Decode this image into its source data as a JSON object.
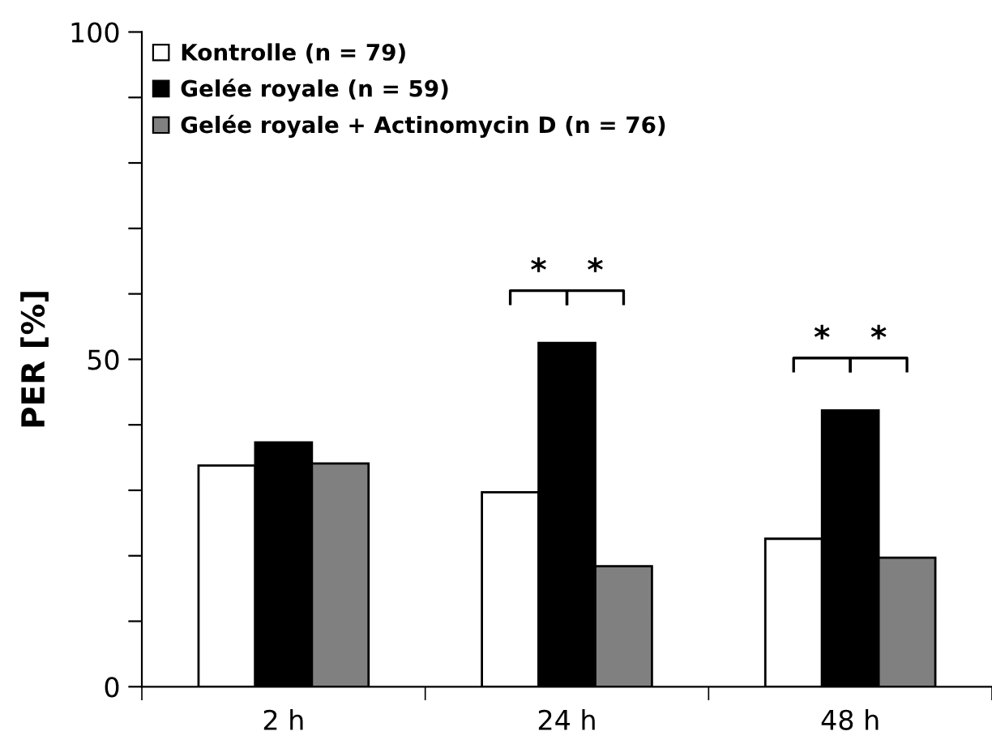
{
  "chart_data": {
    "type": "bar",
    "ylabel": "PER [%]",
    "categories": [
      "2 h",
      "24 h",
      "48 h"
    ],
    "series": [
      {
        "name": "Kontrolle (n = 79)",
        "color": "#ffffff",
        "values": [
          33.8,
          29.7,
          22.6
        ]
      },
      {
        "name": "Gelée royale (n = 59)",
        "color": "#000000",
        "values": [
          37.3,
          52.5,
          42.2
        ]
      },
      {
        "name": "Gelée royale + Actinomycin D (n = 76)",
        "color": "#808080",
        "values": [
          34.1,
          18.4,
          19.7
        ]
      }
    ],
    "ylim": [
      0,
      100
    ],
    "yticks": [
      0,
      {
        "value": 10,
        "label": null
      },
      {
        "value": 20,
        "label": null
      },
      {
        "value": 30,
        "label": null
      },
      {
        "value": 40,
        "label": null
      },
      50,
      {
        "value": 60,
        "label": null
      },
      {
        "value": 70,
        "label": null
      },
      {
        "value": 80,
        "label": null
      },
      {
        "value": 90,
        "label": null
      },
      100
    ],
    "annotations": [
      "*",
      "*",
      "*",
      "*"
    ],
    "legend": "top left",
    "grid": false
  }
}
